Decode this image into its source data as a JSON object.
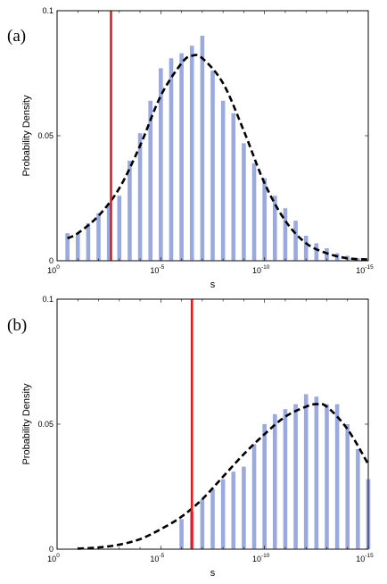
{
  "chart_data": [
    {
      "type": "bar",
      "panel_label": "(a)",
      "xlabel": "s",
      "ylabel": "Probability Density",
      "x_scale": "log-decreasing",
      "xlim": [
        "10^0",
        "10^-15"
      ],
      "ylim": [
        0,
        0.1
      ],
      "x_ticks": [
        {
          "base": "10",
          "exp": "0"
        },
        {
          "base": "10",
          "exp": "-5"
        },
        {
          "base": "10",
          "exp": "-10"
        },
        {
          "base": "10",
          "exp": "-15"
        }
      ],
      "y_ticks": [
        "0",
        "0.05",
        "0.1"
      ],
      "bar_color": "#9aa9e0",
      "bars": {
        "x_log10": [
          -0.5,
          -1.0,
          -1.5,
          -2.0,
          -2.5,
          -3.0,
          -3.5,
          -4.0,
          -4.5,
          -5.0,
          -5.5,
          -6.0,
          -6.5,
          -7.0,
          -7.5,
          -8.0,
          -8.5,
          -9.0,
          -9.5,
          -10.0,
          -10.5,
          -11.0,
          -11.5,
          -12.0,
          -12.5,
          -13.0,
          -13.5,
          -14.0,
          -14.5
        ],
        "values": [
          0.011,
          0.011,
          0.015,
          0.019,
          0.023,
          0.026,
          0.04,
          0.051,
          0.064,
          0.077,
          0.081,
          0.083,
          0.086,
          0.09,
          0.076,
          0.064,
          0.059,
          0.047,
          0.039,
          0.033,
          0.026,
          0.021,
          0.016,
          0.01,
          0.007,
          0.005,
          0.003,
          0.002,
          0.001
        ]
      },
      "fit_curve": {
        "style": "dashed",
        "color": "#000000",
        "x_log10": [
          -0.5,
          -1,
          -2,
          -3,
          -4,
          -5,
          -6,
          -6.5,
          -7,
          -8,
          -9,
          -10,
          -11,
          -12,
          -13,
          -14,
          -15
        ],
        "values": [
          0.009,
          0.011,
          0.018,
          0.029,
          0.046,
          0.066,
          0.079,
          0.082,
          0.081,
          0.071,
          0.052,
          0.031,
          0.016,
          0.007,
          0.003,
          0.001,
          0.0005
        ]
      },
      "marker_line": {
        "color": "#e8191c",
        "x_log10": -2.6
      }
    },
    {
      "type": "bar",
      "panel_label": "(b)",
      "xlabel": "s",
      "ylabel": "Probability Density",
      "x_scale": "log-decreasing",
      "xlim": [
        "10^0",
        "10^-15"
      ],
      "ylim": [
        0,
        0.1
      ],
      "x_ticks": [
        {
          "base": "10",
          "exp": "0"
        },
        {
          "base": "10",
          "exp": "-5"
        },
        {
          "base": "10",
          "exp": "-10"
        },
        {
          "base": "10",
          "exp": "-15"
        }
      ],
      "y_ticks": [
        "0",
        "0.05",
        "0.1"
      ],
      "bar_color": "#9aa9e0",
      "bars": {
        "x_log10": [
          -6.0,
          -6.5,
          -7.0,
          -7.5,
          -8.0,
          -8.5,
          -9.0,
          -9.5,
          -10.0,
          -10.5,
          -11.0,
          -11.5,
          -12.0,
          -12.5,
          -13.0,
          -13.5,
          -14.0,
          -14.5,
          -15.0
        ],
        "values": [
          0.012,
          0.015,
          0.02,
          0.024,
          0.028,
          0.031,
          0.033,
          0.042,
          0.05,
          0.054,
          0.056,
          0.058,
          0.062,
          0.061,
          0.058,
          0.058,
          0.05,
          0.04,
          0.028
        ]
      },
      "fit_curve": {
        "style": "dashed",
        "color": "#000000",
        "x_log10": [
          -1,
          -2,
          -3,
          -4,
          -5,
          -6,
          -7,
          -8,
          -9,
          -10,
          -11,
          -12,
          -12.5,
          -13,
          -14,
          -15
        ],
        "values": [
          0.0002,
          0.0007,
          0.0018,
          0.004,
          0.008,
          0.013,
          0.02,
          0.029,
          0.038,
          0.046,
          0.053,
          0.057,
          0.058,
          0.057,
          0.048,
          0.034
        ]
      },
      "marker_line": {
        "color": "#e8191c",
        "x_log10": -6.5
      }
    }
  ]
}
